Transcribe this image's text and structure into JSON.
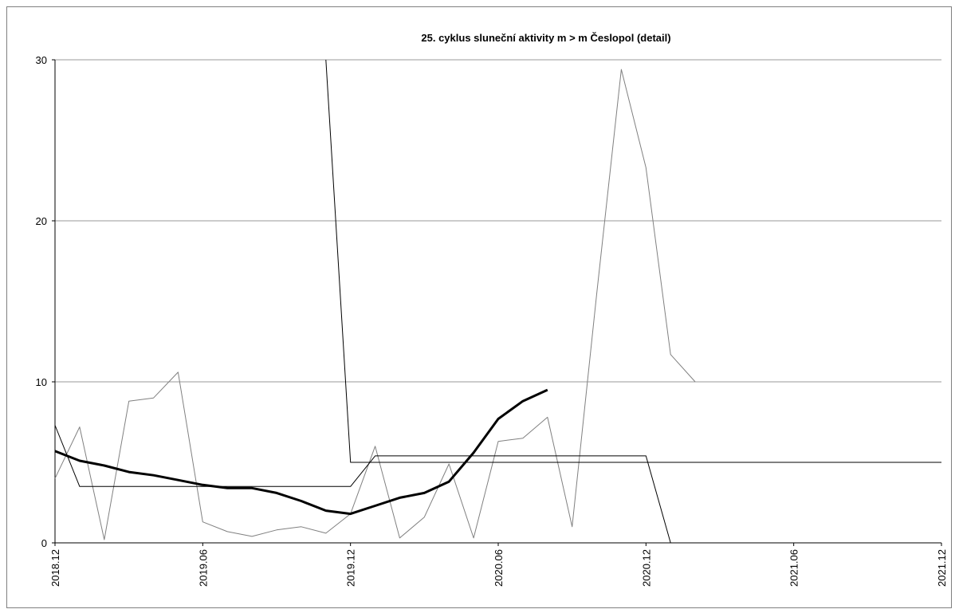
{
  "chart_data": {
    "type": "line",
    "title": "25. cyklus sluneční aktivity m > m Česlopol (detail)",
    "xlabel": "",
    "ylabel": "",
    "ylim": [
      0,
      30
    ],
    "xlim": [
      "2018.12",
      "2021.12"
    ],
    "grid": true,
    "legend": "none",
    "x_tick_labels": [
      "2018.12",
      "2019.06",
      "2019.12",
      "2020.06",
      "2020.12",
      "2021.06",
      "2021.12"
    ],
    "y_tick_labels": [
      "0",
      "10",
      "20",
      "30"
    ],
    "x": [
      "2018.12",
      "2019.01",
      "2019.02",
      "2019.03",
      "2019.04",
      "2019.05",
      "2019.06",
      "2019.07",
      "2019.08",
      "2019.09",
      "2019.10",
      "2019.11",
      "2019.12",
      "2020.01",
      "2020.02",
      "2020.03",
      "2020.04",
      "2020.05",
      "2020.06",
      "2020.07",
      "2020.08",
      "2020.09",
      "2020.10",
      "2020.11",
      "2020.12",
      "2021.01",
      "2021.02",
      "2021.03",
      "2021.04",
      "2021.05",
      "2021.06",
      "2021.07",
      "2021.08",
      "2021.09",
      "2021.10",
      "2021.11",
      "2021.12"
    ],
    "series": [
      {
        "style": "thin-gray",
        "color": "#808080",
        "values": [
          4.0,
          7.2,
          0.2,
          8.8,
          9.0,
          10.6,
          1.3,
          0.7,
          0.4,
          0.8,
          1.0,
          0.6,
          1.8,
          6.0,
          0.3,
          1.6,
          4.9,
          0.3,
          6.3,
          6.5,
          7.8,
          1.0,
          15.5,
          29.4,
          23.3,
          11.7,
          10.0,
          null,
          null,
          null,
          null,
          null,
          null,
          null,
          null,
          null,
          null
        ]
      },
      {
        "style": "bold-black",
        "color": "#000000",
        "values": [
          5.7,
          5.1,
          4.8,
          4.4,
          4.2,
          3.9,
          3.6,
          3.4,
          3.4,
          3.1,
          2.6,
          2.0,
          1.8,
          2.3,
          2.8,
          3.1,
          3.8,
          5.6,
          7.7,
          8.8,
          9.5,
          null,
          null,
          null,
          null,
          null,
          null,
          null,
          null,
          null,
          null,
          null,
          null,
          null,
          null,
          null,
          null
        ]
      },
      {
        "style": "thin-black-upper",
        "color": "#000000",
        "points": [
          [
            "2018.12",
            7.3
          ],
          [
            "2019.01",
            3.5
          ],
          [
            "2019.12",
            3.5
          ],
          [
            "2020.01",
            5.4
          ],
          [
            "2020.12",
            5.4
          ],
          [
            "2021.01",
            0.0
          ],
          [
            "2021.12",
            0.0
          ]
        ]
      },
      {
        "style": "thin-black-lower",
        "color": "#000000",
        "points": [
          [
            "2019.11",
            30.0
          ],
          [
            "2019.12",
            5.0
          ],
          [
            "2021.12",
            5.0
          ]
        ]
      }
    ]
  }
}
